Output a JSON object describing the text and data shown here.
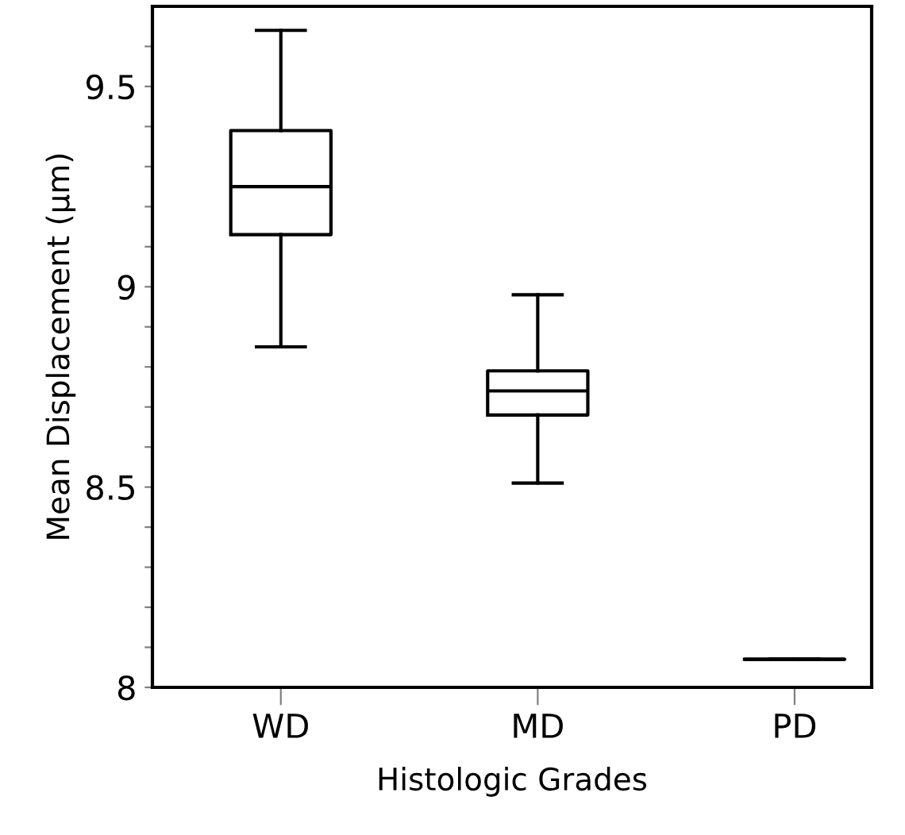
{
  "chart_data": {
    "type": "box",
    "xlabel": "Histologic Grades",
    "ylabel": "Mean Displacement (µm)",
    "categories": [
      "WD",
      "MD",
      "PD"
    ],
    "boxes": [
      {
        "low": 8.85,
        "q1": 9.13,
        "median": 9.25,
        "q3": 9.39,
        "high": 9.64
      },
      {
        "low": 8.51,
        "q1": 8.68,
        "median": 8.74,
        "q3": 8.79,
        "high": 8.98
      },
      {
        "low": 8.07,
        "q1": 8.07,
        "median": 8.07,
        "q3": 8.07,
        "high": 8.07
      }
    ],
    "ylim": [
      8,
      9.7
    ],
    "yticks": [
      8,
      {
        "value": 8.1,
        "label": null
      },
      {
        "value": 8.2,
        "label": null
      },
      {
        "value": 8.3,
        "label": null
      },
      {
        "value": 8.4,
        "label": null
      },
      8.5,
      {
        "value": 8.6,
        "label": null
      },
      {
        "value": 8.7,
        "label": null
      },
      {
        "value": 8.8,
        "label": null
      },
      {
        "value": 8.9,
        "label": null
      },
      9,
      {
        "value": 9.1,
        "label": null
      },
      {
        "value": 9.2,
        "label": null
      },
      {
        "value": 9.3,
        "label": null
      },
      {
        "value": 9.4,
        "label": null
      },
      9.5,
      {
        "value": 9.6,
        "label": null
      }
    ],
    "grid": false
  }
}
